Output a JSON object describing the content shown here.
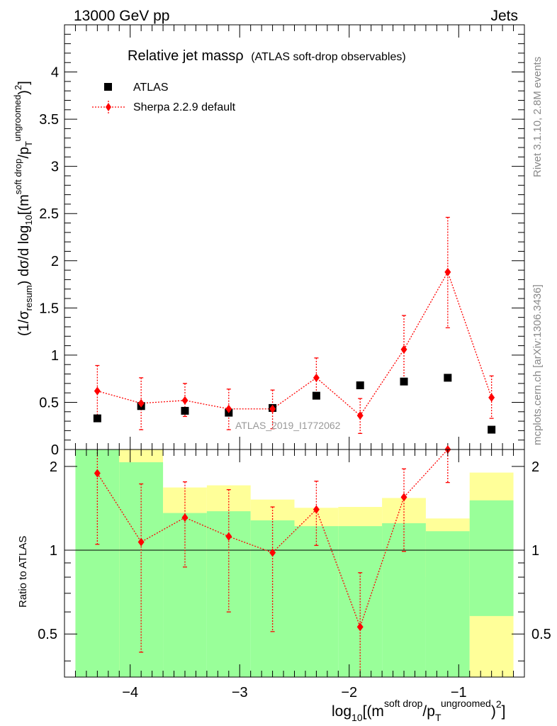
{
  "header": {
    "left": "13000 GeV pp",
    "right": "Jets"
  },
  "side": {
    "rivet": "Rivet 3.1.10,  2.8M events",
    "mcplots": "mcplots.cern.ch [arXiv:1306.3436]"
  },
  "chart_data": [
    {
      "type": "scatter",
      "title": "Relative jet massρ",
      "subtitle": "(ATLAS soft-drop observables)",
      "watermark": "ATLAS_2019_I1772062",
      "ylabel": "(1/σresum) dσ/d log10[(m soft drop/pT ungroomed)2]",
      "ylabel_parts": [
        "(1/σ",
        "resum",
        ") dσ/d log",
        "10",
        "[(m",
        "soft drop",
        "/p",
        "T",
        "ungroomed",
        ")",
        "2",
        "]"
      ],
      "xlim": [
        -4.6,
        -0.4
      ],
      "ylim": [
        0,
        4.5
      ],
      "yticks": [
        0.5,
        1,
        1.5,
        2,
        2.5,
        3,
        3.5,
        4
      ],
      "ytick_labels": [
        "0.5",
        "1",
        "1.5",
        "2",
        "2.5",
        "3",
        "3.5",
        "4"
      ],
      "ylabel_zero": "0",
      "legend": [
        "ATLAS",
        "Sherpa 2.2.9 default"
      ],
      "series": [
        {
          "name": "ATLAS",
          "x": [
            -4.3,
            -3.9,
            -3.5,
            -3.1,
            -2.7,
            -2.3,
            -1.9,
            -1.5,
            -1.1,
            -0.7
          ],
          "y": [
            0.33,
            0.46,
            0.41,
            0.39,
            0.44,
            0.57,
            0.68,
            0.72,
            0.76,
            0.21
          ]
        },
        {
          "name": "Sherpa 2.2.9 default",
          "color": "#ff0000",
          "x": [
            -4.3,
            -3.9,
            -3.5,
            -3.1,
            -2.7,
            -2.3,
            -1.9,
            -1.5,
            -1.1,
            -0.7
          ],
          "y": [
            0.62,
            0.49,
            0.52,
            0.43,
            0.43,
            0.76,
            0.36,
            1.06,
            1.88,
            0.55
          ],
          "err_lo": [
            0.28,
            0.28,
            0.17,
            0.22,
            0.21,
            0.21,
            0.19,
            0.36,
            0.59,
            0.22
          ],
          "err_hi": [
            0.27,
            0.27,
            0.18,
            0.21,
            0.2,
            0.21,
            0.18,
            0.36,
            0.58,
            0.23
          ]
        }
      ]
    },
    {
      "type": "scatter",
      "ylabel": "Ratio to ATLAS",
      "xlabel": "log10[(m soft drop/pT ungroomed)2]",
      "xlabel_parts": [
        "log",
        "10",
        "[(m",
        "soft drop",
        "/p",
        "T",
        "ungroomed",
        ")",
        "2",
        "]"
      ],
      "xlim": [
        -4.6,
        -0.4
      ],
      "ylim": [
        0.35,
        2.3
      ],
      "xticks": [
        -4,
        -3,
        -2,
        -1
      ],
      "xtick_labels": [
        "−4",
        "−3",
        "−2",
        "−1"
      ],
      "yticks": [
        0.5,
        1,
        2
      ],
      "ytick_labels": [
        "0.5",
        "1",
        "2"
      ],
      "bands": {
        "bin_edges": [
          -4.5,
          -4.1,
          -3.7,
          -3.3,
          -2.9,
          -2.5,
          -2.1,
          -1.7,
          -1.3,
          -0.9,
          -0.5
        ],
        "inner_lo": [
          0.35,
          0.35,
          0.35,
          0.35,
          0.35,
          0.35,
          0.35,
          0.35,
          0.35,
          0.58
        ],
        "inner_hi": [
          2.3,
          2.07,
          1.36,
          1.38,
          1.28,
          1.22,
          1.22,
          1.25,
          1.17,
          1.51
        ],
        "outer_lo": [
          0.35,
          0.35,
          0.73,
          0.71,
          0.57,
          0.69,
          0.67,
          0.56,
          0.8,
          0.35
        ],
        "outer_hi": [
          2.3,
          2.3,
          1.68,
          1.71,
          1.52,
          1.42,
          1.43,
          1.54,
          1.3,
          1.9
        ]
      },
      "series": [
        {
          "name": "Sherpa 2.2.9 default / ATLAS",
          "color": "#ff0000",
          "x": [
            -4.3,
            -3.9,
            -3.5,
            -3.1,
            -2.7,
            -2.3,
            -1.9,
            -1.5,
            -1.1
          ],
          "y": [
            1.89,
            1.07,
            1.31,
            1.12,
            0.98,
            1.4,
            0.53,
            1.55,
            2.3
          ],
          "err_lo": [
            0.84,
            0.64,
            0.44,
            0.52,
            0.47,
            0.36,
            0.2,
            0.56,
            0.55
          ],
          "err_hi": [
            0.81,
            0.66,
            0.45,
            0.53,
            0.45,
            0.37,
            0.3,
            0.41,
            0.0
          ]
        }
      ]
    }
  ]
}
